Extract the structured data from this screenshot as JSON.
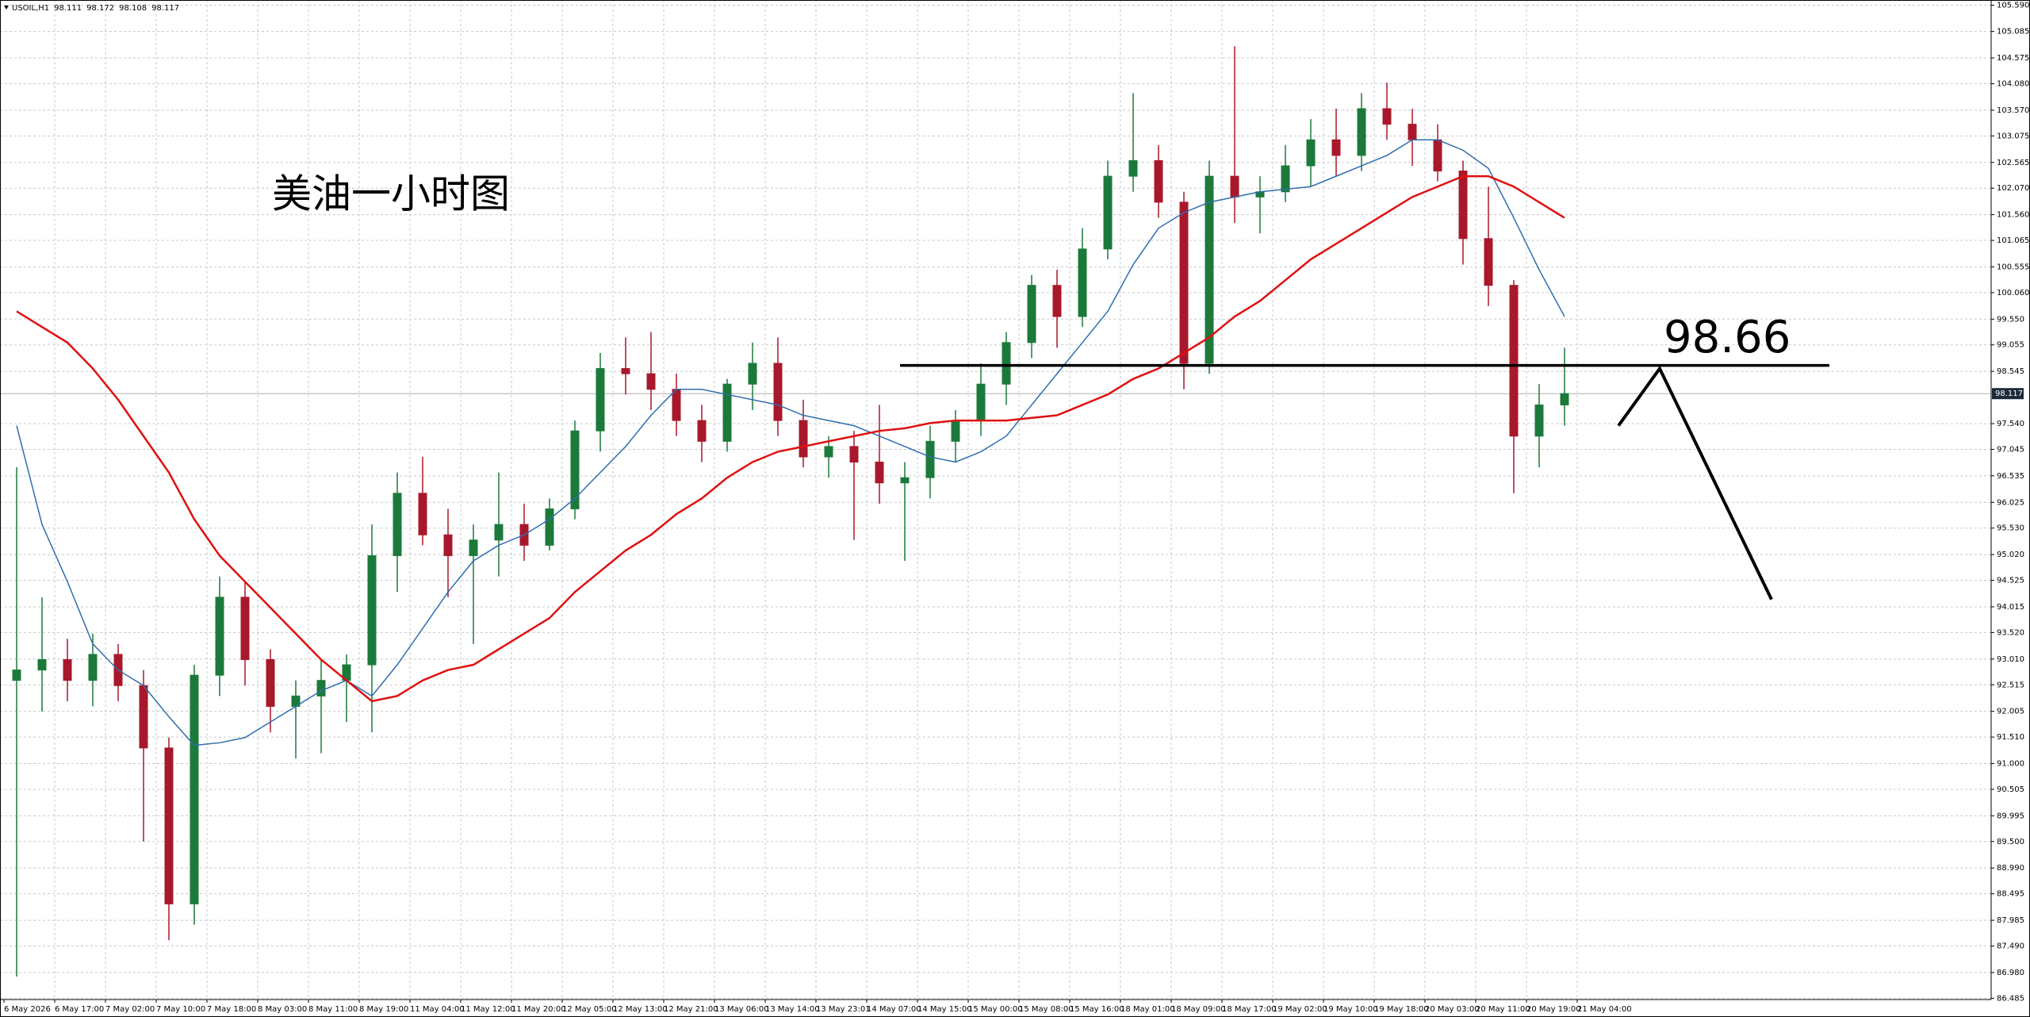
{
  "chart_data": {
    "type": "candlestick",
    "symbol": "USOIL,H1",
    "header_ohlc": [
      98.111,
      98.172,
      98.108,
      98.117
    ],
    "title": "美油一小时图",
    "level": 98.66,
    "last_price": 98.117,
    "up_color": "#1b7a3a",
    "down_color": "#a8182b",
    "grid": true,
    "ylim": [
      86.46,
      105.69
    ],
    "yticks": [
      {
        "value": 105.59,
        "label": "105.590"
      },
      105.085,
      104.575,
      {
        "value": 104.08,
        "label": "104.080"
      },
      {
        "value": 103.57,
        "label": "103.570"
      },
      103.075,
      102.565,
      {
        "value": 102.07,
        "label": "102.070"
      },
      {
        "value": 101.56,
        "label": "101.560"
      },
      101.065,
      100.555,
      {
        "value": 100.06,
        "label": "100.060"
      },
      {
        "value": 99.55,
        "label": "99.550"
      },
      99.055,
      98.545,
      {
        "value": 97.54,
        "label": "97.540"
      },
      97.045,
      96.535,
      96.025,
      {
        "value": 95.53,
        "label": "95.530"
      },
      {
        "value": 95.02,
        "label": "95.020"
      },
      94.525,
      94.015,
      {
        "value": 93.52,
        "label": "93.520"
      },
      {
        "value": 93.01,
        "label": "93.010"
      },
      92.515,
      92.005,
      {
        "value": 91.51,
        "label": "91.510"
      },
      {
        "value": 91.0,
        "label": "91.000"
      },
      90.505,
      89.995,
      {
        "value": 89.5,
        "label": "89.500"
      },
      {
        "value": 88.99,
        "label": "88.990"
      },
      88.495,
      87.985,
      {
        "value": 87.49,
        "label": "87.490"
      },
      {
        "value": 86.98,
        "label": "86.980"
      },
      86.485
    ],
    "time_labels": [
      "6 May 2026",
      "6 May 17:00",
      "7 May 02:00",
      "7 May 10:00",
      "7 May 18:00",
      "8 May 03:00",
      "8 May 11:00",
      "8 May 19:00",
      "11 May 04:00",
      "11 May 12:00",
      "11 May 20:00",
      "12 May 05:00",
      "12 May 13:00",
      "12 May 21:00",
      "13 May 06:00",
      "13 May 14:00",
      "13 May 23:01",
      "14 May 07:00",
      "14 May 15:00",
      "15 May 00:00",
      "15 May 08:00",
      "15 May 16:00",
      "18 May 01:00",
      "18 May 09:00",
      "18 May 17:00",
      "19 May 02:00",
      "19 May 10:00",
      "19 May 18:00",
      "20 May 03:00",
      "20 May 11:00",
      "20 May 19:00",
      "21 May 04:00"
    ],
    "open": [
      92.6,
      92.8,
      93.0,
      92.6,
      93.1,
      92.5,
      91.3,
      88.3,
      92.7,
      94.2,
      93.0,
      92.1,
      92.3,
      92.6,
      92.9,
      95.0,
      96.2,
      95.4,
      95.0,
      95.3,
      95.6,
      95.2,
      95.9,
      97.4,
      98.6,
      98.5,
      98.2,
      97.6,
      97.2,
      98.3,
      98.7,
      97.6,
      96.9,
      97.1,
      96.8,
      96.4,
      96.5,
      97.2,
      97.6,
      98.3,
      99.1,
      100.2,
      99.6,
      100.9,
      102.3,
      102.6,
      101.8,
      98.7,
      102.3,
      101.9,
      102.0,
      102.5,
      103.0,
      102.7,
      103.6,
      103.3,
      103.0,
      102.4,
      101.1,
      100.2,
      97.3,
      97.9
    ],
    "high": [
      96.7,
      94.2,
      93.4,
      93.5,
      93.3,
      92.8,
      91.5,
      92.9,
      94.6,
      94.5,
      93.2,
      92.6,
      93.0,
      93.1,
      95.6,
      96.6,
      96.9,
      95.9,
      95.6,
      96.6,
      96.0,
      96.1,
      97.6,
      98.9,
      99.2,
      99.3,
      98.5,
      97.9,
      98.4,
      99.1,
      99.2,
      98.0,
      97.3,
      97.4,
      97.9,
      96.8,
      97.5,
      97.8,
      98.7,
      99.3,
      100.4,
      100.5,
      101.3,
      102.6,
      103.9,
      102.9,
      102.0,
      102.6,
      104.8,
      102.3,
      102.9,
      103.4,
      103.6,
      103.9,
      104.1,
      103.6,
      103.3,
      102.6,
      102.1,
      100.3,
      98.3,
      99.0
    ],
    "low": [
      86.9,
      92.0,
      92.2,
      92.1,
      92.2,
      89.5,
      87.6,
      87.9,
      92.3,
      92.5,
      91.6,
      91.1,
      91.2,
      91.8,
      91.6,
      94.3,
      95.2,
      94.2,
      93.3,
      94.6,
      94.9,
      95.1,
      95.7,
      97.0,
      98.1,
      97.8,
      97.3,
      96.8,
      97.0,
      97.8,
      97.3,
      96.7,
      96.5,
      95.3,
      96.0,
      94.9,
      96.1,
      96.8,
      97.3,
      97.9,
      98.8,
      99.0,
      99.4,
      100.7,
      102.0,
      101.5,
      98.2,
      98.5,
      101.4,
      101.2,
      101.8,
      102.1,
      102.3,
      102.4,
      103.0,
      102.5,
      102.2,
      100.6,
      99.8,
      96.2,
      96.7,
      97.5
    ],
    "close": [
      92.8,
      93.0,
      92.6,
      93.1,
      92.5,
      91.3,
      88.3,
      92.7,
      94.2,
      93.0,
      92.1,
      92.3,
      92.6,
      92.9,
      95.0,
      96.2,
      95.4,
      95.0,
      95.3,
      95.6,
      95.2,
      95.9,
      97.4,
      98.6,
      98.5,
      98.2,
      97.6,
      97.2,
      98.3,
      98.7,
      97.6,
      96.9,
      97.1,
      96.8,
      96.4,
      96.5,
      97.2,
      97.6,
      98.3,
      99.1,
      100.2,
      99.6,
      100.9,
      102.3,
      102.6,
      101.8,
      98.7,
      102.3,
      101.9,
      102.0,
      102.5,
      103.0,
      102.7,
      103.6,
      103.3,
      103.0,
      102.4,
      101.1,
      100.2,
      97.3,
      97.9,
      98.117
    ],
    "lines": [
      {
        "color": "#2f6db0",
        "values": [
          97.5,
          95.6,
          94.5,
          93.3,
          92.8,
          92.5,
          91.9,
          91.35,
          91.4,
          91.5,
          91.8,
          92.1,
          92.4,
          92.6,
          92.3,
          92.9,
          93.6,
          94.3,
          94.9,
          95.2,
          95.4,
          95.7,
          96.1,
          96.6,
          97.1,
          97.7,
          98.2,
          98.2,
          98.1,
          98.0,
          97.9,
          97.7,
          97.6,
          97.5,
          97.3,
          97.1,
          96.9,
          96.8,
          97.0,
          97.3,
          97.9,
          98.5,
          99.1,
          99.7,
          100.6,
          101.3,
          101.6,
          101.8,
          101.9,
          102.0,
          102.05,
          102.1,
          102.3,
          102.5,
          102.7,
          103.0,
          103.0,
          102.8,
          102.45,
          101.5,
          100.5,
          99.6
        ]
      },
      {
        "color": "#e01010",
        "values": [
          99.7,
          99.4,
          99.1,
          98.6,
          98.0,
          97.3,
          96.6,
          95.7,
          95.0,
          94.5,
          94.0,
          93.5,
          93.0,
          92.6,
          92.2,
          92.3,
          92.6,
          92.8,
          92.9,
          93.2,
          93.5,
          93.8,
          94.3,
          94.7,
          95.1,
          95.4,
          95.8,
          96.1,
          96.5,
          96.8,
          97.0,
          97.1,
          97.2,
          97.3,
          97.4,
          97.45,
          97.55,
          97.6,
          97.6,
          97.6,
          97.65,
          97.7,
          97.9,
          98.1,
          98.4,
          98.6,
          98.9,
          99.2,
          99.6,
          99.9,
          100.3,
          100.7,
          101.0,
          101.3,
          101.6,
          101.9,
          102.1,
          102.3,
          102.3,
          102.1,
          101.8,
          101.5
        ]
      }
    ]
  }
}
